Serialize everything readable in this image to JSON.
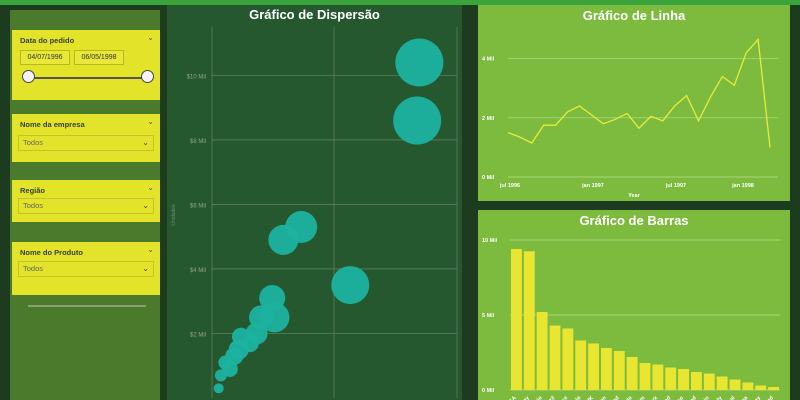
{
  "colors": {
    "background": "#1d3b1f",
    "slicer": "#e3e32a",
    "scatter_bg": "#265830",
    "bubble": "#1bb3a0",
    "panel": "#7dbb3e",
    "line": "#e6ec3a",
    "bar": "#e8e630"
  },
  "filters": {
    "date": {
      "title": "Data do pedido",
      "start": "04/07/1996",
      "end": "06/05/1998"
    },
    "company": {
      "title": "Nome da empresa",
      "value": "Todos"
    },
    "region": {
      "title": "Região",
      "value": "Todos"
    },
    "product": {
      "title": "Nome do Produto",
      "value": "Todos"
    }
  },
  "scatter": {
    "title": "Gráfico de Dispersão",
    "y_axis_label": "Unidades",
    "y_ticks": [
      "$2 Mil",
      "$4 Mil",
      "$6 Mil",
      "$8 Mil",
      "$10 Mil"
    ],
    "chart_data": {
      "type": "scatter",
      "ylim": [
        0,
        11500
      ],
      "points": [
        {
          "x": 0.03,
          "y": 300,
          "r": 5
        },
        {
          "x": 0.04,
          "y": 700,
          "r": 6
        },
        {
          "x": 0.06,
          "y": 1100,
          "r": 7
        },
        {
          "x": 0.08,
          "y": 900,
          "r": 8
        },
        {
          "x": 0.1,
          "y": 1300,
          "r": 9
        },
        {
          "x": 0.12,
          "y": 1500,
          "r": 10
        },
        {
          "x": 0.13,
          "y": 1900,
          "r": 9
        },
        {
          "x": 0.17,
          "y": 1700,
          "r": 9
        },
        {
          "x": 0.2,
          "y": 2000,
          "r": 11
        },
        {
          "x": 0.22,
          "y": 2500,
          "r": 12
        },
        {
          "x": 0.28,
          "y": 2500,
          "r": 15
        },
        {
          "x": 0.27,
          "y": 3100,
          "r": 13
        },
        {
          "x": 0.32,
          "y": 4900,
          "r": 15
        },
        {
          "x": 0.4,
          "y": 5300,
          "r": 16
        },
        {
          "x": 0.62,
          "y": 3500,
          "r": 19
        },
        {
          "x": 0.92,
          "y": 8600,
          "r": 24
        },
        {
          "x": 0.93,
          "y": 10400,
          "r": 24
        }
      ]
    }
  },
  "line": {
    "title": "Gráfico de Linha",
    "x_title": "Year",
    "chart_data": {
      "type": "line",
      "ylim": [
        0,
        4800
      ],
      "y_ticks": [
        "0 Mil",
        "2 Mil",
        "4 Mil"
      ],
      "x_ticks": [
        "jul 1996",
        "jan 1997",
        "jul 1997",
        "jan 1998"
      ],
      "values": [
        1500,
        1350,
        1150,
        1750,
        1750,
        2200,
        2400,
        2100,
        1800,
        1950,
        2150,
        1650,
        2050,
        1900,
        2400,
        2750,
        1900,
        2700,
        3400,
        3100,
        4200,
        4650,
        1000
      ]
    }
  },
  "bar": {
    "title": "Gráfico de Barras",
    "chart_data": {
      "type": "bar",
      "ylim": [
        0,
        10000
      ],
      "y_ticks": [
        "0 Mil",
        "5 Mil",
        "10 Mil"
      ],
      "categories": [
        "USA",
        "Germany",
        "Austria",
        "Brazil",
        "France",
        "Venezuela",
        "UK",
        "Sweden",
        "Ireland",
        "Canada",
        "Belgium",
        "Denmark",
        "Switzerland",
        "Mexico",
        "Finland",
        "Spain",
        "Italy",
        "Portugal",
        "Argentina",
        "Norway",
        "Poland"
      ],
      "tick_labels": [
        "USA",
        "any",
        "ria",
        "zil",
        "nce",
        "ela",
        "UK",
        "den",
        "and",
        "ada",
        "ium",
        "ark",
        "and",
        "ico",
        "and",
        "ain",
        "aly",
        "gal",
        "ina",
        "way",
        "and"
      ],
      "values": [
        9400,
        9250,
        5200,
        4300,
        4100,
        3300,
        3100,
        2800,
        2600,
        2200,
        1800,
        1700,
        1500,
        1400,
        1200,
        1100,
        900,
        700,
        500,
        300,
        200
      ]
    }
  }
}
